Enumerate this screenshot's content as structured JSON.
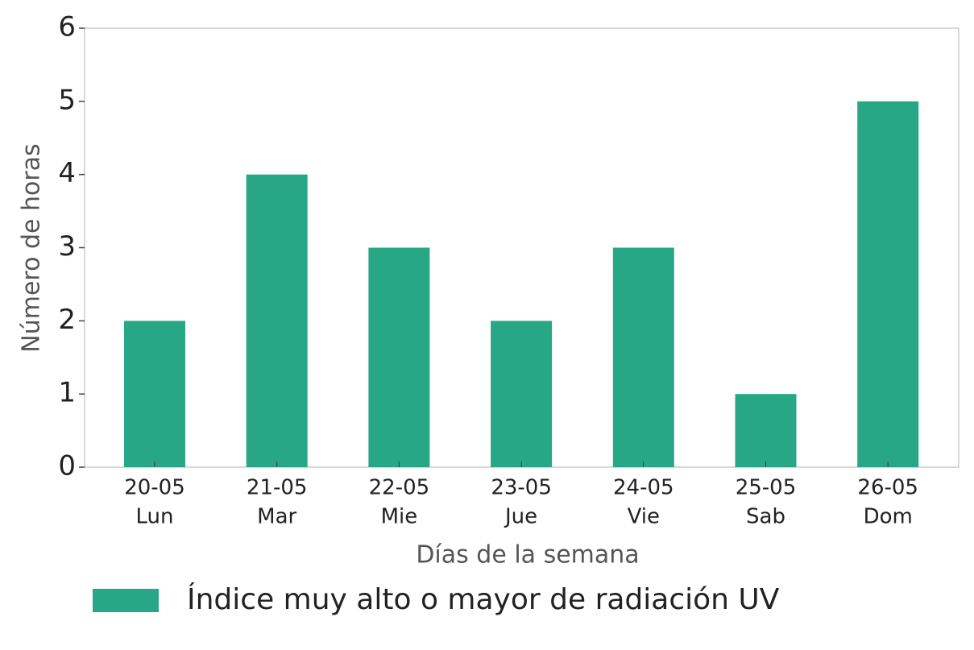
{
  "chart_data": {
    "type": "bar",
    "xlabel": "Días de la semana",
    "ylabel": "Número de horas",
    "categories": [
      [
        "20-05",
        "Lun"
      ],
      [
        "21-05",
        "Mar"
      ],
      [
        "22-05",
        "Mie"
      ],
      [
        "23-05",
        "Jue"
      ],
      [
        "24-05",
        "Vie"
      ],
      [
        "25-05",
        "Sab"
      ],
      [
        "26-05",
        "Dom"
      ]
    ],
    "series": [
      {
        "name": "Índice muy alto o mayor de radiación UV",
        "color": "#27a785",
        "values": [
          2,
          4,
          3,
          2,
          3,
          1,
          5
        ]
      }
    ],
    "ylim": [
      0,
      6
    ],
    "yticks": [
      0,
      1,
      2,
      3,
      4,
      5,
      6
    ],
    "grid": false,
    "legend": "bottom"
  }
}
